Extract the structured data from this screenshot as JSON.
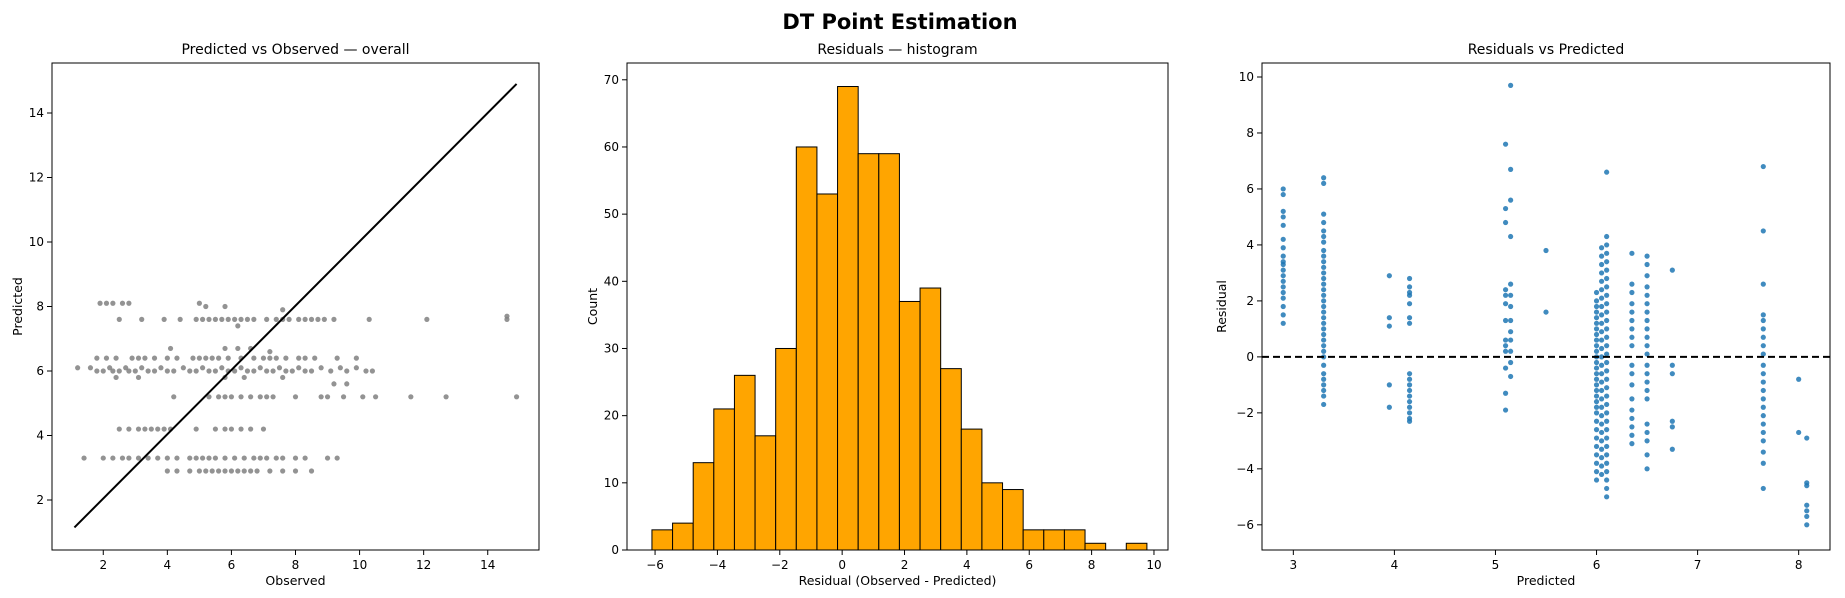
{
  "suptitle": "DT Point Estimation",
  "chart_data": [
    {
      "type": "scatter",
      "title": "Predicted vs Observed — overall",
      "xlabel": "Observed",
      "ylabel": "Predicted",
      "xlim": [
        0.4,
        15.6
      ],
      "ylim": [
        0.45,
        15.55
      ],
      "xticks": [
        2,
        4,
        6,
        8,
        10,
        12,
        14
      ],
      "yticks": [
        2,
        4,
        6,
        8,
        10,
        12,
        14
      ],
      "point_color": "#808080",
      "line_color": "#000000",
      "reference_line": {
        "x": [
          1.1,
          14.9
        ],
        "y": [
          1.15,
          14.9
        ]
      },
      "points": [
        [
          1.9,
          8.1
        ],
        [
          2.1,
          8.1
        ],
        [
          2.3,
          8.1
        ],
        [
          2.6,
          8.1
        ],
        [
          2.8,
          8.1
        ],
        [
          5.0,
          8.1
        ],
        [
          5.2,
          8.0
        ],
        [
          5.8,
          8.0
        ],
        [
          2.5,
          7.6
        ],
        [
          3.2,
          7.6
        ],
        [
          3.9,
          7.6
        ],
        [
          4.4,
          7.6
        ],
        [
          4.9,
          7.6
        ],
        [
          5.1,
          7.6
        ],
        [
          5.3,
          7.6
        ],
        [
          5.5,
          7.6
        ],
        [
          5.7,
          7.6
        ],
        [
          5.9,
          7.6
        ],
        [
          6.1,
          7.6
        ],
        [
          6.3,
          7.6
        ],
        [
          6.5,
          7.6
        ],
        [
          6.7,
          7.6
        ],
        [
          7.1,
          7.6
        ],
        [
          7.4,
          7.6
        ],
        [
          7.6,
          7.6
        ],
        [
          7.8,
          7.6
        ],
        [
          8.1,
          7.6
        ],
        [
          8.3,
          7.6
        ],
        [
          8.5,
          7.6
        ],
        [
          8.7,
          7.6
        ],
        [
          8.9,
          7.6
        ],
        [
          9.2,
          7.6
        ],
        [
          10.3,
          7.6
        ],
        [
          12.1,
          7.6
        ],
        [
          14.6,
          7.6
        ],
        [
          14.6,
          7.7
        ],
        [
          6.2,
          7.4
        ],
        [
          7.6,
          7.9
        ],
        [
          4.1,
          6.7
        ],
        [
          5.8,
          6.7
        ],
        [
          6.2,
          6.7
        ],
        [
          6.6,
          6.7
        ],
        [
          7.2,
          6.6
        ],
        [
          1.8,
          6.4
        ],
        [
          2.1,
          6.4
        ],
        [
          2.4,
          6.4
        ],
        [
          2.9,
          6.4
        ],
        [
          3.1,
          6.4
        ],
        [
          3.3,
          6.4
        ],
        [
          3.6,
          6.4
        ],
        [
          4.0,
          6.4
        ],
        [
          4.3,
          6.4
        ],
        [
          4.8,
          6.4
        ],
        [
          5.0,
          6.4
        ],
        [
          5.2,
          6.4
        ],
        [
          5.4,
          6.4
        ],
        [
          5.6,
          6.4
        ],
        [
          5.9,
          6.4
        ],
        [
          6.3,
          6.4
        ],
        [
          6.7,
          6.4
        ],
        [
          7.0,
          6.4
        ],
        [
          7.2,
          6.4
        ],
        [
          7.4,
          6.4
        ],
        [
          7.7,
          6.4
        ],
        [
          8.1,
          6.4
        ],
        [
          8.3,
          6.4
        ],
        [
          8.6,
          6.4
        ],
        [
          9.3,
          6.4
        ],
        [
          9.9,
          6.4
        ],
        [
          1.2,
          6.1
        ],
        [
          1.6,
          6.1
        ],
        [
          1.8,
          6.0
        ],
        [
          2.0,
          6.0
        ],
        [
          2.2,
          6.1
        ],
        [
          2.3,
          6.0
        ],
        [
          2.5,
          6.0
        ],
        [
          2.7,
          6.1
        ],
        [
          2.8,
          6.0
        ],
        [
          3.0,
          6.0
        ],
        [
          3.2,
          6.1
        ],
        [
          3.4,
          6.0
        ],
        [
          3.6,
          6.0
        ],
        [
          3.8,
          6.1
        ],
        [
          4.0,
          6.0
        ],
        [
          4.2,
          6.0
        ],
        [
          4.5,
          6.1
        ],
        [
          4.7,
          6.0
        ],
        [
          4.9,
          6.0
        ],
        [
          5.1,
          6.1
        ],
        [
          5.3,
          6.0
        ],
        [
          5.5,
          6.0
        ],
        [
          5.7,
          6.1
        ],
        [
          5.9,
          6.0
        ],
        [
          6.1,
          6.0
        ],
        [
          6.3,
          6.1
        ],
        [
          6.5,
          6.0
        ],
        [
          6.7,
          6.0
        ],
        [
          6.9,
          6.1
        ],
        [
          7.1,
          6.0
        ],
        [
          7.3,
          6.0
        ],
        [
          7.5,
          6.1
        ],
        [
          7.7,
          6.0
        ],
        [
          7.9,
          6.0
        ],
        [
          8.1,
          6.1
        ],
        [
          8.3,
          6.0
        ],
        [
          8.5,
          6.0
        ],
        [
          8.8,
          6.1
        ],
        [
          9.1,
          6.0
        ],
        [
          9.4,
          6.1
        ],
        [
          9.6,
          6.0
        ],
        [
          9.9,
          6.1
        ],
        [
          10.2,
          6.0
        ],
        [
          10.4,
          6.0
        ],
        [
          2.4,
          5.8
        ],
        [
          3.1,
          5.8
        ],
        [
          5.8,
          5.8
        ],
        [
          6.4,
          5.8
        ],
        [
          7.6,
          5.8
        ],
        [
          9.2,
          5.6
        ],
        [
          9.6,
          5.6
        ],
        [
          4.2,
          5.2
        ],
        [
          5.3,
          5.2
        ],
        [
          5.6,
          5.2
        ],
        [
          5.8,
          5.2
        ],
        [
          6.0,
          5.2
        ],
        [
          6.3,
          5.2
        ],
        [
          6.6,
          5.2
        ],
        [
          6.9,
          5.2
        ],
        [
          7.1,
          5.2
        ],
        [
          7.3,
          5.2
        ],
        [
          8.0,
          5.2
        ],
        [
          8.8,
          5.2
        ],
        [
          9.0,
          5.2
        ],
        [
          9.5,
          5.2
        ],
        [
          10.1,
          5.2
        ],
        [
          10.5,
          5.2
        ],
        [
          11.6,
          5.2
        ],
        [
          12.7,
          5.2
        ],
        [
          14.9,
          5.2
        ],
        [
          2.5,
          4.2
        ],
        [
          2.8,
          4.2
        ],
        [
          3.1,
          4.2
        ],
        [
          3.3,
          4.2
        ],
        [
          3.5,
          4.2
        ],
        [
          3.7,
          4.2
        ],
        [
          3.9,
          4.2
        ],
        [
          4.1,
          4.2
        ],
        [
          4.9,
          4.2
        ],
        [
          5.5,
          4.2
        ],
        [
          5.8,
          4.2
        ],
        [
          6.0,
          4.2
        ],
        [
          6.3,
          4.2
        ],
        [
          6.6,
          4.2
        ],
        [
          7.0,
          4.2
        ],
        [
          1.4,
          3.3
        ],
        [
          2.0,
          3.3
        ],
        [
          2.3,
          3.3
        ],
        [
          2.6,
          3.3
        ],
        [
          2.8,
          3.3
        ],
        [
          3.1,
          3.3
        ],
        [
          3.4,
          3.3
        ],
        [
          3.7,
          3.3
        ],
        [
          4.0,
          3.3
        ],
        [
          4.3,
          3.3
        ],
        [
          4.7,
          3.3
        ],
        [
          4.9,
          3.3
        ],
        [
          5.1,
          3.3
        ],
        [
          5.3,
          3.3
        ],
        [
          5.5,
          3.3
        ],
        [
          5.8,
          3.3
        ],
        [
          6.1,
          3.3
        ],
        [
          6.4,
          3.3
        ],
        [
          6.7,
          3.3
        ],
        [
          6.9,
          3.3
        ],
        [
          7.1,
          3.3
        ],
        [
          7.4,
          3.3
        ],
        [
          7.6,
          3.3
        ],
        [
          8.0,
          3.3
        ],
        [
          8.3,
          3.3
        ],
        [
          9.0,
          3.3
        ],
        [
          9.3,
          3.3
        ],
        [
          4.0,
          2.9
        ],
        [
          4.3,
          2.9
        ],
        [
          4.7,
          2.9
        ],
        [
          5.0,
          2.9
        ],
        [
          5.2,
          2.9
        ],
        [
          5.4,
          2.9
        ],
        [
          5.6,
          2.9
        ],
        [
          5.8,
          2.9
        ],
        [
          6.0,
          2.9
        ],
        [
          6.2,
          2.9
        ],
        [
          6.4,
          2.9
        ],
        [
          6.6,
          2.9
        ],
        [
          6.8,
          2.9
        ],
        [
          7.2,
          2.9
        ],
        [
          7.6,
          2.9
        ],
        [
          8.0,
          2.9
        ],
        [
          8.5,
          2.9
        ]
      ]
    },
    {
      "type": "bar",
      "title": "Residuals — histogram",
      "xlabel": "Residual (Observed - Predicted)",
      "ylabel": "Count",
      "xlim": [
        -6.9,
        10.45
      ],
      "ylim": [
        0,
        72.5
      ],
      "xticks": [
        -6,
        -4,
        -2,
        0,
        2,
        4,
        6,
        8,
        10
      ],
      "yticks": [
        0,
        10,
        20,
        30,
        40,
        50,
        60,
        70
      ],
      "bar_color": "#FFA500",
      "edge_color": "#000000",
      "bin_start": -6.1,
      "bin_width": 0.6614,
      "counts": [
        3,
        4,
        13,
        21,
        26,
        17,
        30,
        60,
        53,
        69,
        59,
        59,
        37,
        39,
        27,
        18,
        10,
        9,
        3,
        3,
        3,
        1,
        0,
        1
      ]
    },
    {
      "type": "scatter",
      "title": "Residuals vs Predicted",
      "xlabel": "Predicted",
      "ylabel": "Residual",
      "xlim": [
        2.69,
        8.31
      ],
      "ylim": [
        -6.9,
        10.5
      ],
      "xticks": [
        3,
        4,
        5,
        6,
        7,
        8
      ],
      "yticks": [
        -6,
        -4,
        -2,
        0,
        2,
        4,
        6,
        8,
        10
      ],
      "point_color": "#1f77b4",
      "hline": {
        "y": 0,
        "style": "dashed",
        "color": "#000000"
      },
      "columns": [
        {
          "x": 2.9,
          "y": [
            6.0,
            5.8,
            5.2,
            5.0,
            4.7,
            4.2,
            3.9,
            3.6,
            3.4,
            3.3,
            3.1,
            2.9,
            2.7,
            2.5,
            2.3,
            2.1,
            1.8,
            1.5,
            1.2
          ]
        },
        {
          "x": 3.3,
          "y": [
            6.4,
            6.2,
            5.1,
            4.8,
            4.5,
            4.3,
            4.1,
            3.8,
            3.6,
            3.4,
            3.2,
            3.0,
            2.8,
            2.6,
            2.4,
            2.2,
            2.0,
            1.8,
            1.6,
            1.4,
            1.2,
            1.0,
            0.8,
            0.6,
            0.4,
            0.2,
            0.0,
            -0.3,
            -0.6,
            -0.8,
            -1.0,
            -1.2,
            -1.4,
            -1.7
          ]
        },
        {
          "x": 3.95,
          "y": [
            2.9,
            1.4,
            1.1,
            -1.0,
            -1.8
          ]
        },
        {
          "x": 4.15,
          "y": [
            2.8,
            2.5,
            2.3,
            2.2,
            1.9,
            1.4,
            1.2,
            -0.6,
            -0.8,
            -1.0,
            -1.2,
            -1.4,
            -1.6,
            -1.8,
            -2.0,
            -2.2,
            -2.3
          ]
        },
        {
          "x": 5.1,
          "y": [
            7.6,
            5.3,
            4.8,
            2.4,
            2.2,
            1.9,
            1.3,
            0.6,
            0.4,
            0.2,
            -0.4,
            -1.3,
            -1.9
          ]
        },
        {
          "x": 5.15,
          "y": [
            9.7,
            6.7,
            5.6,
            4.3,
            2.6,
            2.2,
            1.8,
            1.3,
            0.9,
            0.6,
            0.2,
            -0.2,
            -0.7
          ]
        },
        {
          "x": 5.5,
          "y": [
            3.8,
            1.6
          ]
        },
        {
          "x": 6.0,
          "y": [
            2.3,
            2.0,
            1.8,
            1.6,
            1.4,
            1.2,
            1.0,
            0.8,
            0.6,
            0.4,
            0.2,
            0.0,
            -0.2,
            -0.4,
            -0.6,
            -0.8,
            -1.0,
            -1.2,
            -1.4,
            -1.6,
            -1.8,
            -2.0,
            -2.3,
            -2.6,
            -2.9,
            -3.2,
            -3.5,
            -3.8,
            -4.1,
            -4.4
          ]
        },
        {
          "x": 6.05,
          "y": [
            3.9,
            3.6,
            3.3,
            3.0,
            2.7,
            2.4,
            2.1,
            1.8,
            1.5,
            1.2,
            0.9,
            0.6,
            0.3,
            0.0,
            -0.3,
            -0.6,
            -0.9,
            -1.2,
            -1.5,
            -1.8,
            -2.1,
            -2.4,
            -2.7,
            -3.0,
            -3.3,
            -3.6,
            -3.9,
            -4.2
          ]
        },
        {
          "x": 6.1,
          "y": [
            6.6,
            4.3,
            4.0,
            3.7,
            3.4,
            3.1,
            2.8,
            2.5,
            2.2,
            1.9,
            1.6,
            1.3,
            1.0,
            0.7,
            0.4,
            0.1,
            -0.2,
            -0.5,
            -0.8,
            -1.1,
            -1.4,
            -1.7,
            -2.0,
            -2.3,
            -2.6,
            -2.9,
            -3.2,
            -3.5,
            -3.8,
            -4.1,
            -4.4,
            -4.7,
            -5.0
          ]
        },
        {
          "x": 6.35,
          "y": [
            3.7,
            2.6,
            2.3,
            1.9,
            1.6,
            1.3,
            1.0,
            0.7,
            0.4,
            -0.3,
            -0.6,
            -1.0,
            -1.5,
            -1.9,
            -2.2,
            -2.5,
            -2.8,
            -3.1
          ]
        },
        {
          "x": 6.5,
          "y": [
            3.6,
            3.3,
            2.9,
            2.5,
            2.2,
            1.9,
            1.6,
            1.3,
            1.0,
            0.7,
            0.4,
            0.1,
            -0.3,
            -0.6,
            -0.9,
            -1.2,
            -1.5,
            -2.4,
            -2.7,
            -3.0,
            -3.5,
            -4.0
          ]
        },
        {
          "x": 6.75,
          "y": [
            3.1,
            -0.3,
            -0.6,
            -2.3,
            -2.5,
            -3.3
          ]
        },
        {
          "x": 7.65,
          "y": [
            6.8,
            4.5,
            2.6,
            1.5,
            1.3,
            1.0,
            0.7,
            0.4,
            0.1,
            -0.3,
            -0.6,
            -0.9,
            -1.2,
            -1.5,
            -1.8,
            -2.1,
            -2.4,
            -2.7,
            -3.0,
            -3.4,
            -3.8,
            -4.7
          ]
        },
        {
          "x": 8.0,
          "y": [
            -0.8,
            -2.7
          ]
        },
        {
          "x": 8.08,
          "y": [
            -2.9,
            -4.5,
            -4.6,
            -5.3,
            -5.5,
            -5.7,
            -6.0
          ]
        }
      ]
    }
  ]
}
